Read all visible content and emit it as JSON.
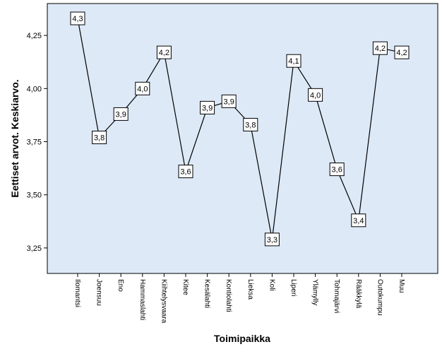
{
  "chart_data": {
    "type": "line",
    "xlabel": "Toimipaikka",
    "ylabel": "Eettiset arvot. Keskiarvo.",
    "ylim": [
      3.13,
      4.4
    ],
    "yticks": [
      "3,25",
      "3,50",
      "3,75",
      "4,00",
      "4,25"
    ],
    "ytick_values": [
      3.25,
      3.5,
      3.75,
      4.0,
      4.25
    ],
    "grid": false,
    "plot_background": "#dde9f7",
    "line_color": "#000000",
    "categories": [
      "Ilomantsi",
      "Joensuu",
      "Eno",
      "Hammaslahti",
      "Kiihtelysvaara",
      "Kitee",
      "Kesälahti",
      "Kontiolahti",
      "Lieksa",
      "Koli",
      "Liperi",
      "Ylämylly",
      "Tohmajärvi",
      "Rääkkylä",
      "Outokumpu",
      "Muu"
    ],
    "values": [
      4.33,
      3.77,
      3.88,
      4.0,
      4.17,
      3.61,
      3.91,
      3.94,
      3.83,
      3.29,
      4.13,
      3.97,
      3.62,
      3.38,
      4.19,
      4.17
    ],
    "data_labels": [
      "4,3",
      "3,8",
      "3,9",
      "4,0",
      "4,2",
      "3,6",
      "3,9",
      "3,9",
      "3,8",
      "3,3",
      "4,1",
      "4,0",
      "3,6",
      "3,4",
      "4,2",
      "4,2"
    ]
  }
}
